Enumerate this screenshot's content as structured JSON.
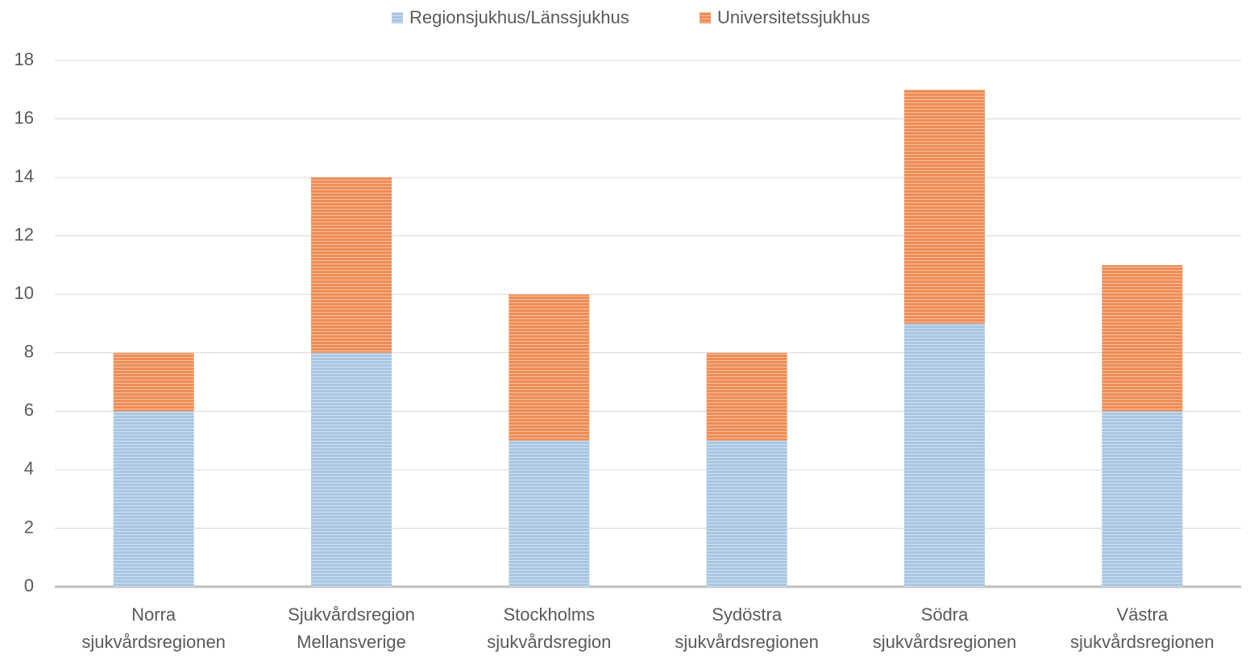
{
  "chart_data": {
    "type": "stacked_bar",
    "categories": [
      "Norra sjukvårdsregionen",
      "Sjukvårdsregion Mellansverige",
      "Stockholms sjukvårdsregion",
      "Sydöstra sjukvårdsregionen",
      "Södra sjukvårdsregionen",
      "Västra sjukvårdsregionen"
    ],
    "series": [
      {
        "name": "Regionsjukhus/Länssjukhus",
        "color": "#a9c6e3",
        "values": [
          6,
          8,
          5,
          5,
          9,
          6
        ]
      },
      {
        "name": "Universitetssjukhus",
        "color": "#ee8d55",
        "values": [
          2,
          6,
          5,
          3,
          8,
          5
        ]
      }
    ],
    "ylim": [
      0,
      18
    ],
    "yticks": [
      0,
      2,
      4,
      6,
      8,
      10,
      12,
      14,
      16,
      18
    ],
    "grid": true,
    "legend": "top"
  }
}
